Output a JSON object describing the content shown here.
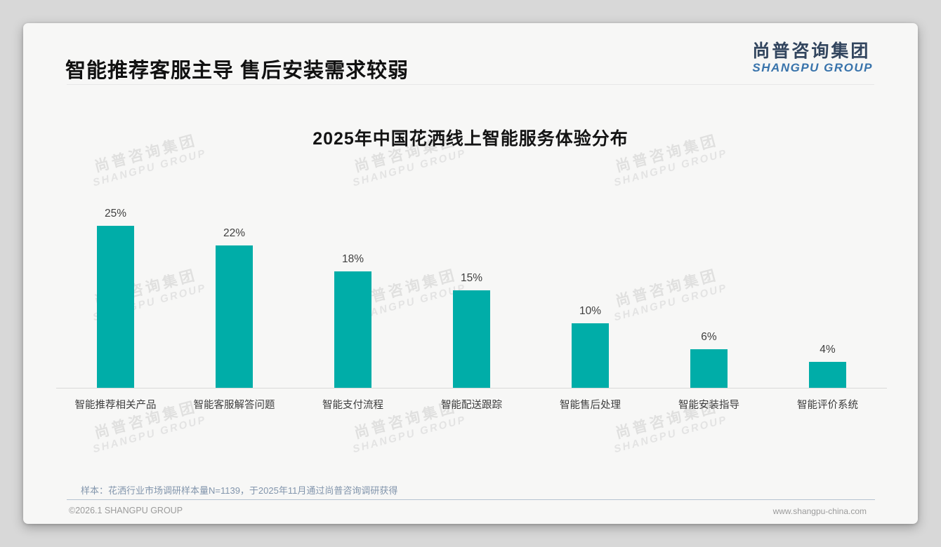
{
  "page": {
    "header": {
      "title": "智能推荐客服主导 售后安装需求较弱"
    },
    "logo": {
      "cn": "尚普咨询集团",
      "en": "SHANGPU GROUP"
    },
    "watermark": {
      "cn": "尚普咨询集团",
      "en": "SHANGPU GROUP"
    },
    "footnote": "样本：花洒行业市场调研样本量N=1139，于2025年11月通过尚普咨询调研获得",
    "footer": {
      "left": "©2026.1 SHANGPU GROUP",
      "right": "www.shangpu-china.com"
    }
  },
  "chart_data": {
    "type": "bar",
    "title": "2025年中国花洒线上智能服务体验分布",
    "categories": [
      "智能推荐相关产品",
      "智能客服解答问题",
      "智能支付流程",
      "智能配送跟踪",
      "智能售后处理",
      "智能安装指导",
      "智能评价系统"
    ],
    "values": [
      25,
      22,
      18,
      15,
      10,
      6,
      4
    ],
    "data_labels": [
      "25%",
      "22%",
      "18%",
      "15%",
      "10%",
      "6%",
      "4%"
    ],
    "unit": "%",
    "ylim": [
      0,
      27
    ],
    "grid": false,
    "legend": "none",
    "bar_color": "#00ada8",
    "axis_color": "#d9d9d9",
    "label_color": "#3f3f3f"
  }
}
